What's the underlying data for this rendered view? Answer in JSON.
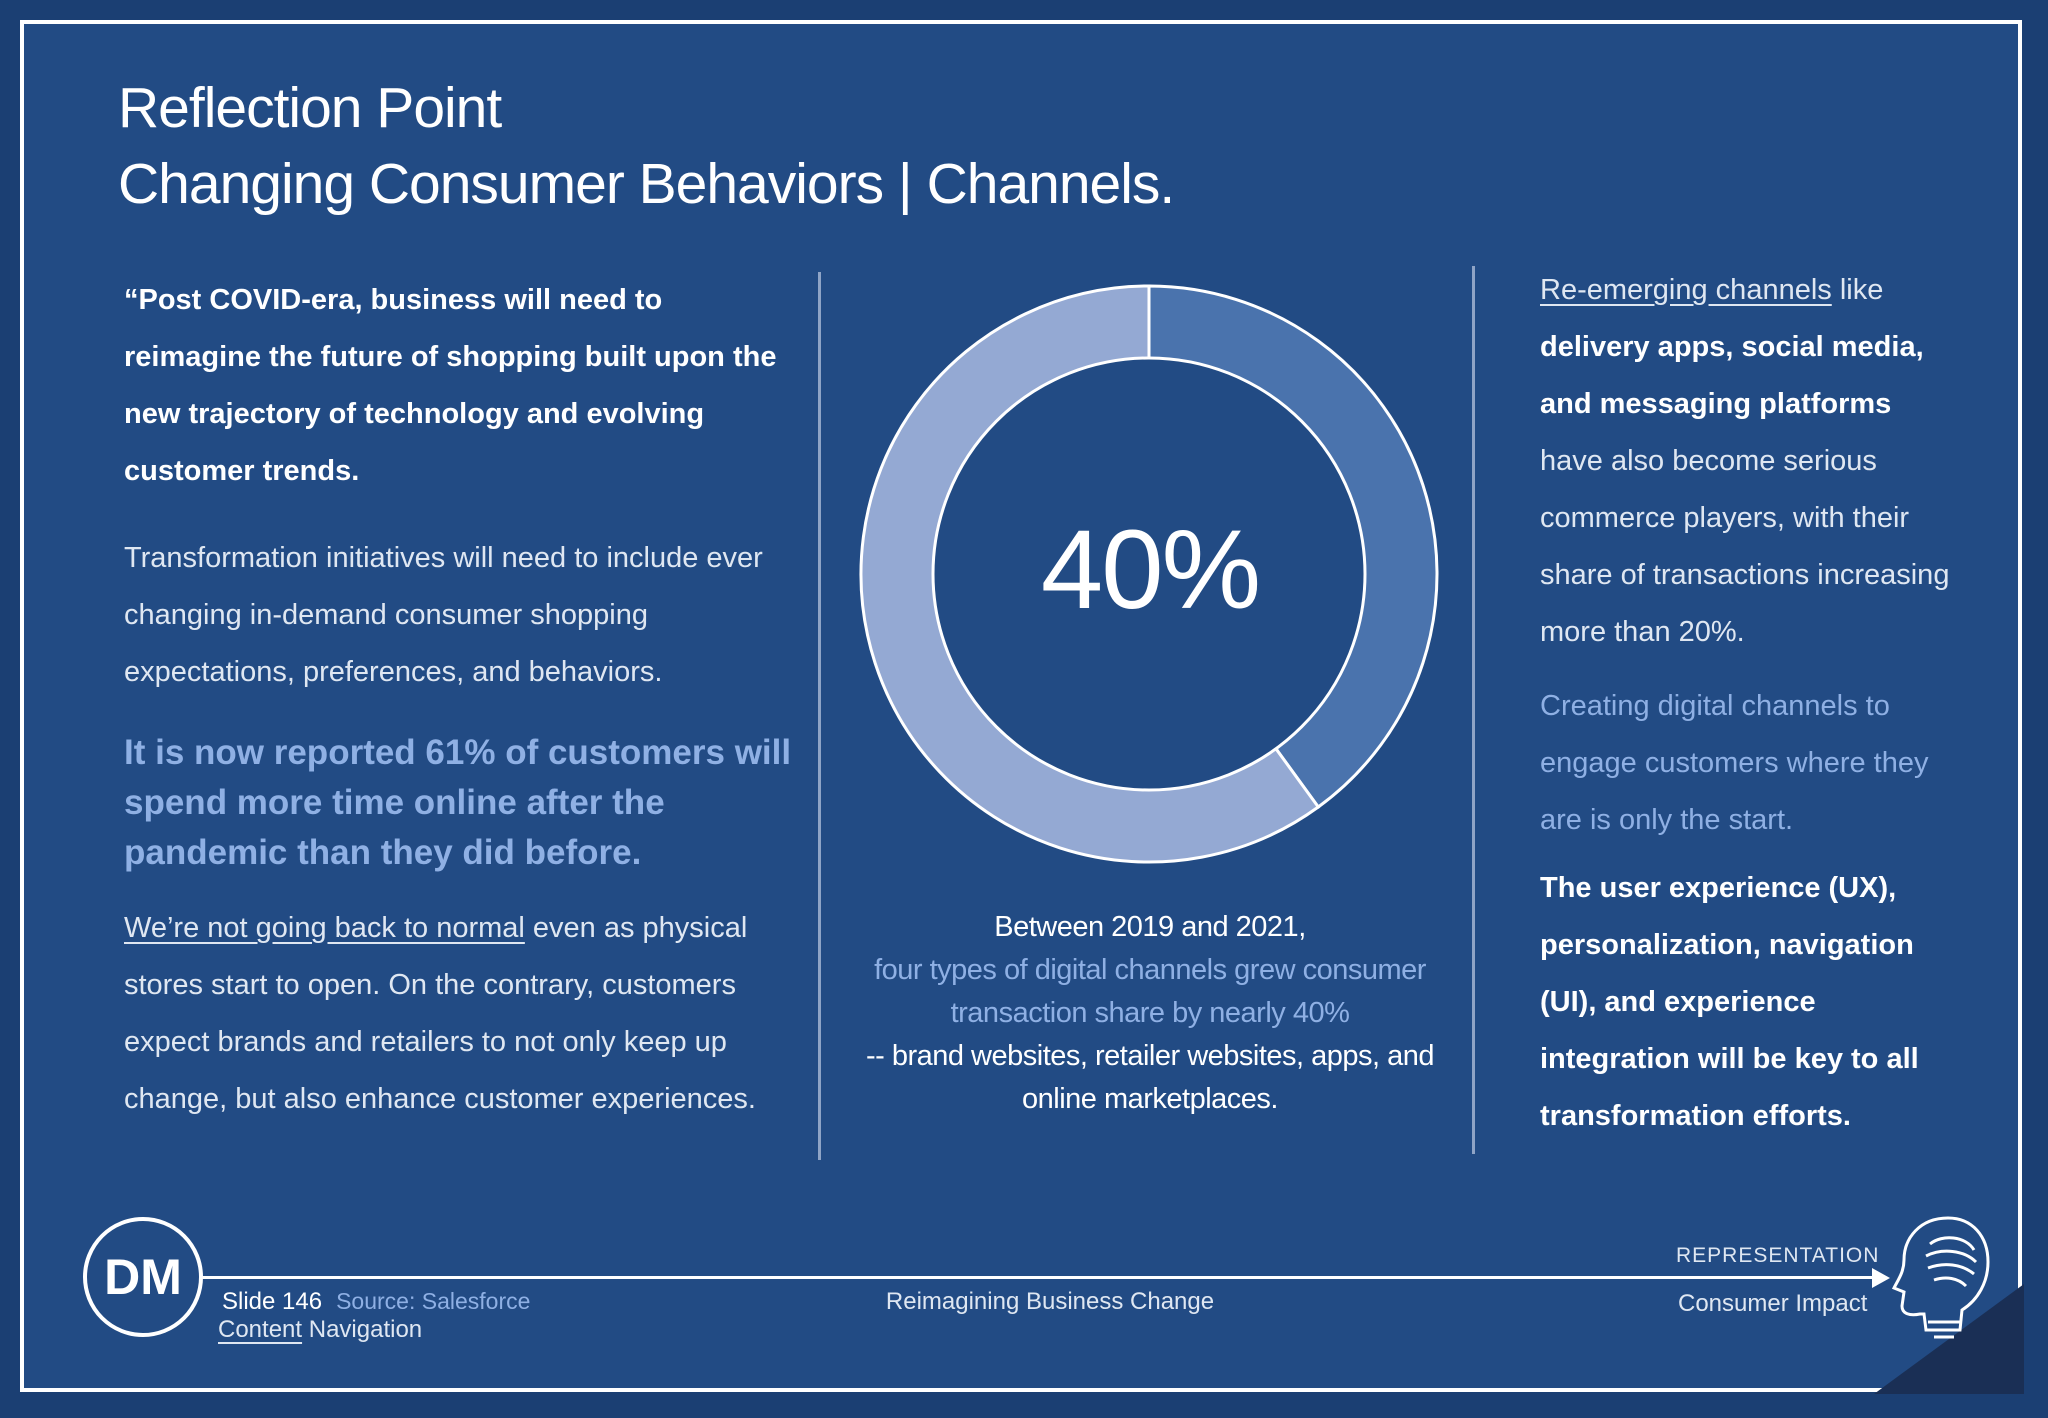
{
  "title": {
    "line1": "Reflection Point",
    "line2": "Changing Consumer Behaviors | Channels."
  },
  "left": {
    "quote": "“Post COVID-era, business will need to reimagine the future of shopping built upon the new trajectory of technology and evolving customer trends.",
    "transformation": "Transformation initiatives will need to include ever changing in-demand consumer shopping expectations, preferences, and behaviors.",
    "highlight": "It is now reported 61% of customers will spend more time online after the pandemic than they did before.",
    "normal_link": "We’re not going back to normal",
    "normal_rest": " even as physical stores start to open. On the contrary, customers expect brands and retailers to not only keep up change, but also enhance customer experiences."
  },
  "chart_data": {
    "type": "pie",
    "style": "donut",
    "categories": [
      "",
      ""
    ],
    "values": [
      40,
      60
    ],
    "colors": [
      "#4a73ad",
      "#94a9d3"
    ],
    "center_label": "40%"
  },
  "caption": {
    "line1": "Between 2019 and 2021,",
    "highlight": "four types of digital channels grew consumer transaction share by nearly 40%",
    "rest": "-- brand websites, retailer websites, apps, and online marketplaces."
  },
  "right": {
    "link": "Re-emerging channels",
    "like": " like ",
    "bold": "delivery apps, social media, and messaging platforms",
    "rest": " have also become serious commerce players, with their share of transactions increasing more than 20%.",
    "creating": "Creating digital channels to engage customers where they are is only the start.",
    "ux": "The user experience (UX), personalization, navigation (UI), and experience integration will be key to all transformation efforts."
  },
  "footer": {
    "logo_text": "DM",
    "slide": "Slide 146",
    "source": "Source: Salesforce",
    "nav_link": "Content",
    "nav_rest": " Navigation",
    "center": "Reimagining Business Change",
    "representation": "REPRESENTATION",
    "consumer_impact": "Consumer Impact"
  },
  "colors": {
    "background": "#224b84",
    "highlight": "#8fb0e4",
    "donut_dark": "#4a73ad",
    "donut_light": "#94a9d3"
  }
}
